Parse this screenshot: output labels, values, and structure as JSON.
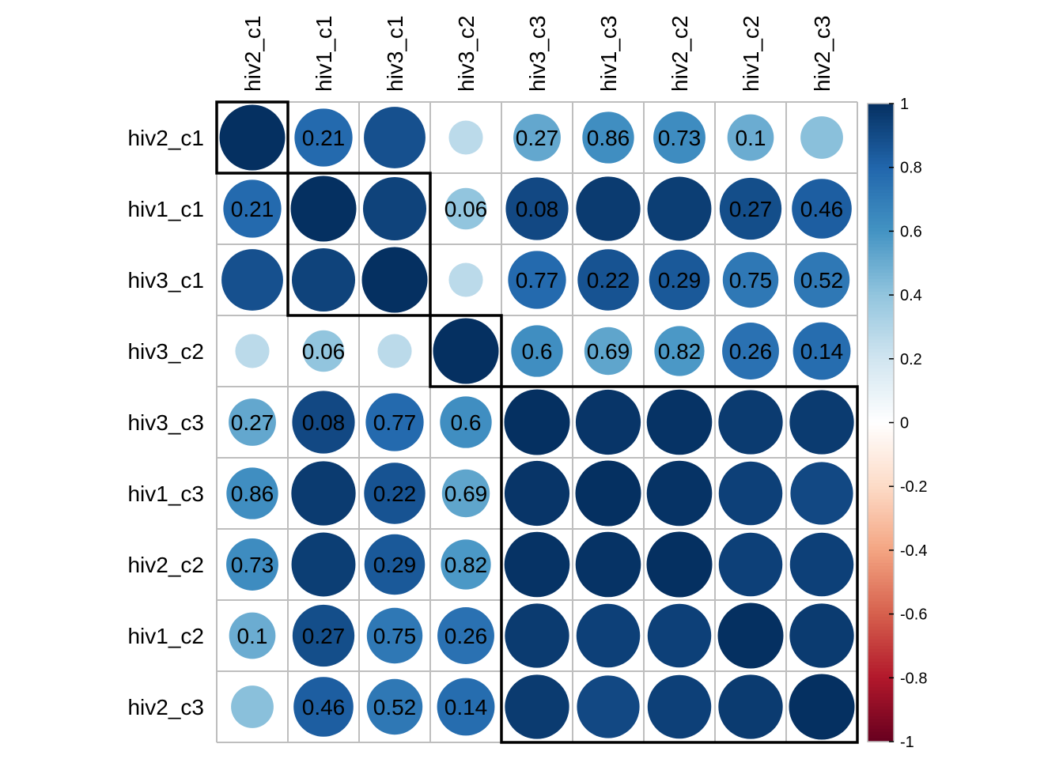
{
  "chart_data": {
    "type": "heatmap",
    "style": "corrplot-circle",
    "labels": [
      "hiv2_c1",
      "hiv1_c1",
      "hiv3_c1",
      "hiv3_c2",
      "hiv3_c3",
      "hiv1_c3",
      "hiv2_c2",
      "hiv1_c2",
      "hiv2_c3"
    ],
    "correlations": [
      [
        1.0,
        0.78,
        0.88,
        0.27,
        0.52,
        0.62,
        0.63,
        0.5,
        0.42
      ],
      [
        0.78,
        1.0,
        0.93,
        0.4,
        0.91,
        0.96,
        0.95,
        0.89,
        0.83
      ],
      [
        0.88,
        0.93,
        1.0,
        0.27,
        0.78,
        0.87,
        0.85,
        0.72,
        0.72
      ],
      [
        0.27,
        0.4,
        0.27,
        1.0,
        0.62,
        0.53,
        0.58,
        0.75,
        0.77
      ],
      [
        0.52,
        0.91,
        0.78,
        0.62,
        1.0,
        0.98,
        0.99,
        0.96,
        0.96
      ],
      [
        0.62,
        0.96,
        0.87,
        0.53,
        0.98,
        1.0,
        0.99,
        0.94,
        0.91
      ],
      [
        0.63,
        0.95,
        0.85,
        0.58,
        0.99,
        0.99,
        1.0,
        0.94,
        0.94
      ],
      [
        0.5,
        0.89,
        0.72,
        0.75,
        0.96,
        0.94,
        0.94,
        1.0,
        0.96
      ],
      [
        0.42,
        0.83,
        0.72,
        0.77,
        0.96,
        0.91,
        0.94,
        0.96,
        1.0
      ]
    ],
    "pvalues": [
      [
        "",
        "0.21",
        "",
        "",
        "0.27",
        "0.86",
        "0.73",
        "0.1",
        ""
      ],
      [
        "0.21",
        "",
        "",
        "0.06",
        "0.08",
        "",
        "",
        "0.27",
        "0.46"
      ],
      [
        "",
        "",
        "",
        "",
        "0.77",
        "0.22",
        "0.29",
        "0.75",
        "0.52"
      ],
      [
        "",
        "0.06",
        "",
        "",
        "0.6",
        "0.69",
        "0.82",
        "0.26",
        "0.14"
      ],
      [
        "0.27",
        "0.08",
        "0.77",
        "0.6",
        "",
        "",
        "",
        "",
        ""
      ],
      [
        "0.86",
        "",
        "0.22",
        "0.69",
        "",
        "",
        "",
        "",
        ""
      ],
      [
        "0.73",
        "",
        "0.29",
        "0.82",
        "",
        "",
        "",
        "",
        ""
      ],
      [
        "0.1",
        "0.27",
        "0.75",
        "0.26",
        "",
        "",
        "",
        "",
        ""
      ],
      [
        "",
        "0.46",
        "0.52",
        "0.14",
        "",
        "",
        "",
        "",
        ""
      ]
    ],
    "clusters": [
      {
        "start": 0,
        "end": 0
      },
      {
        "start": 1,
        "end": 2
      },
      {
        "start": 3,
        "end": 3
      },
      {
        "start": 4,
        "end": 8
      }
    ],
    "colorbar": {
      "range": [
        -1,
        1
      ],
      "ticks": [
        "1",
        "0.8",
        "0.6",
        "0.4",
        "0.2",
        "0",
        "-0.2",
        "-0.4",
        "-0.6",
        "-0.8",
        "-1"
      ],
      "palette": [
        "#67001F",
        "#B2182B",
        "#D6604D",
        "#F4A582",
        "#FDDBC7",
        "#FFFFFF",
        "#D1E5F0",
        "#92C5DE",
        "#4393C3",
        "#2166AC",
        "#053061"
      ]
    }
  }
}
